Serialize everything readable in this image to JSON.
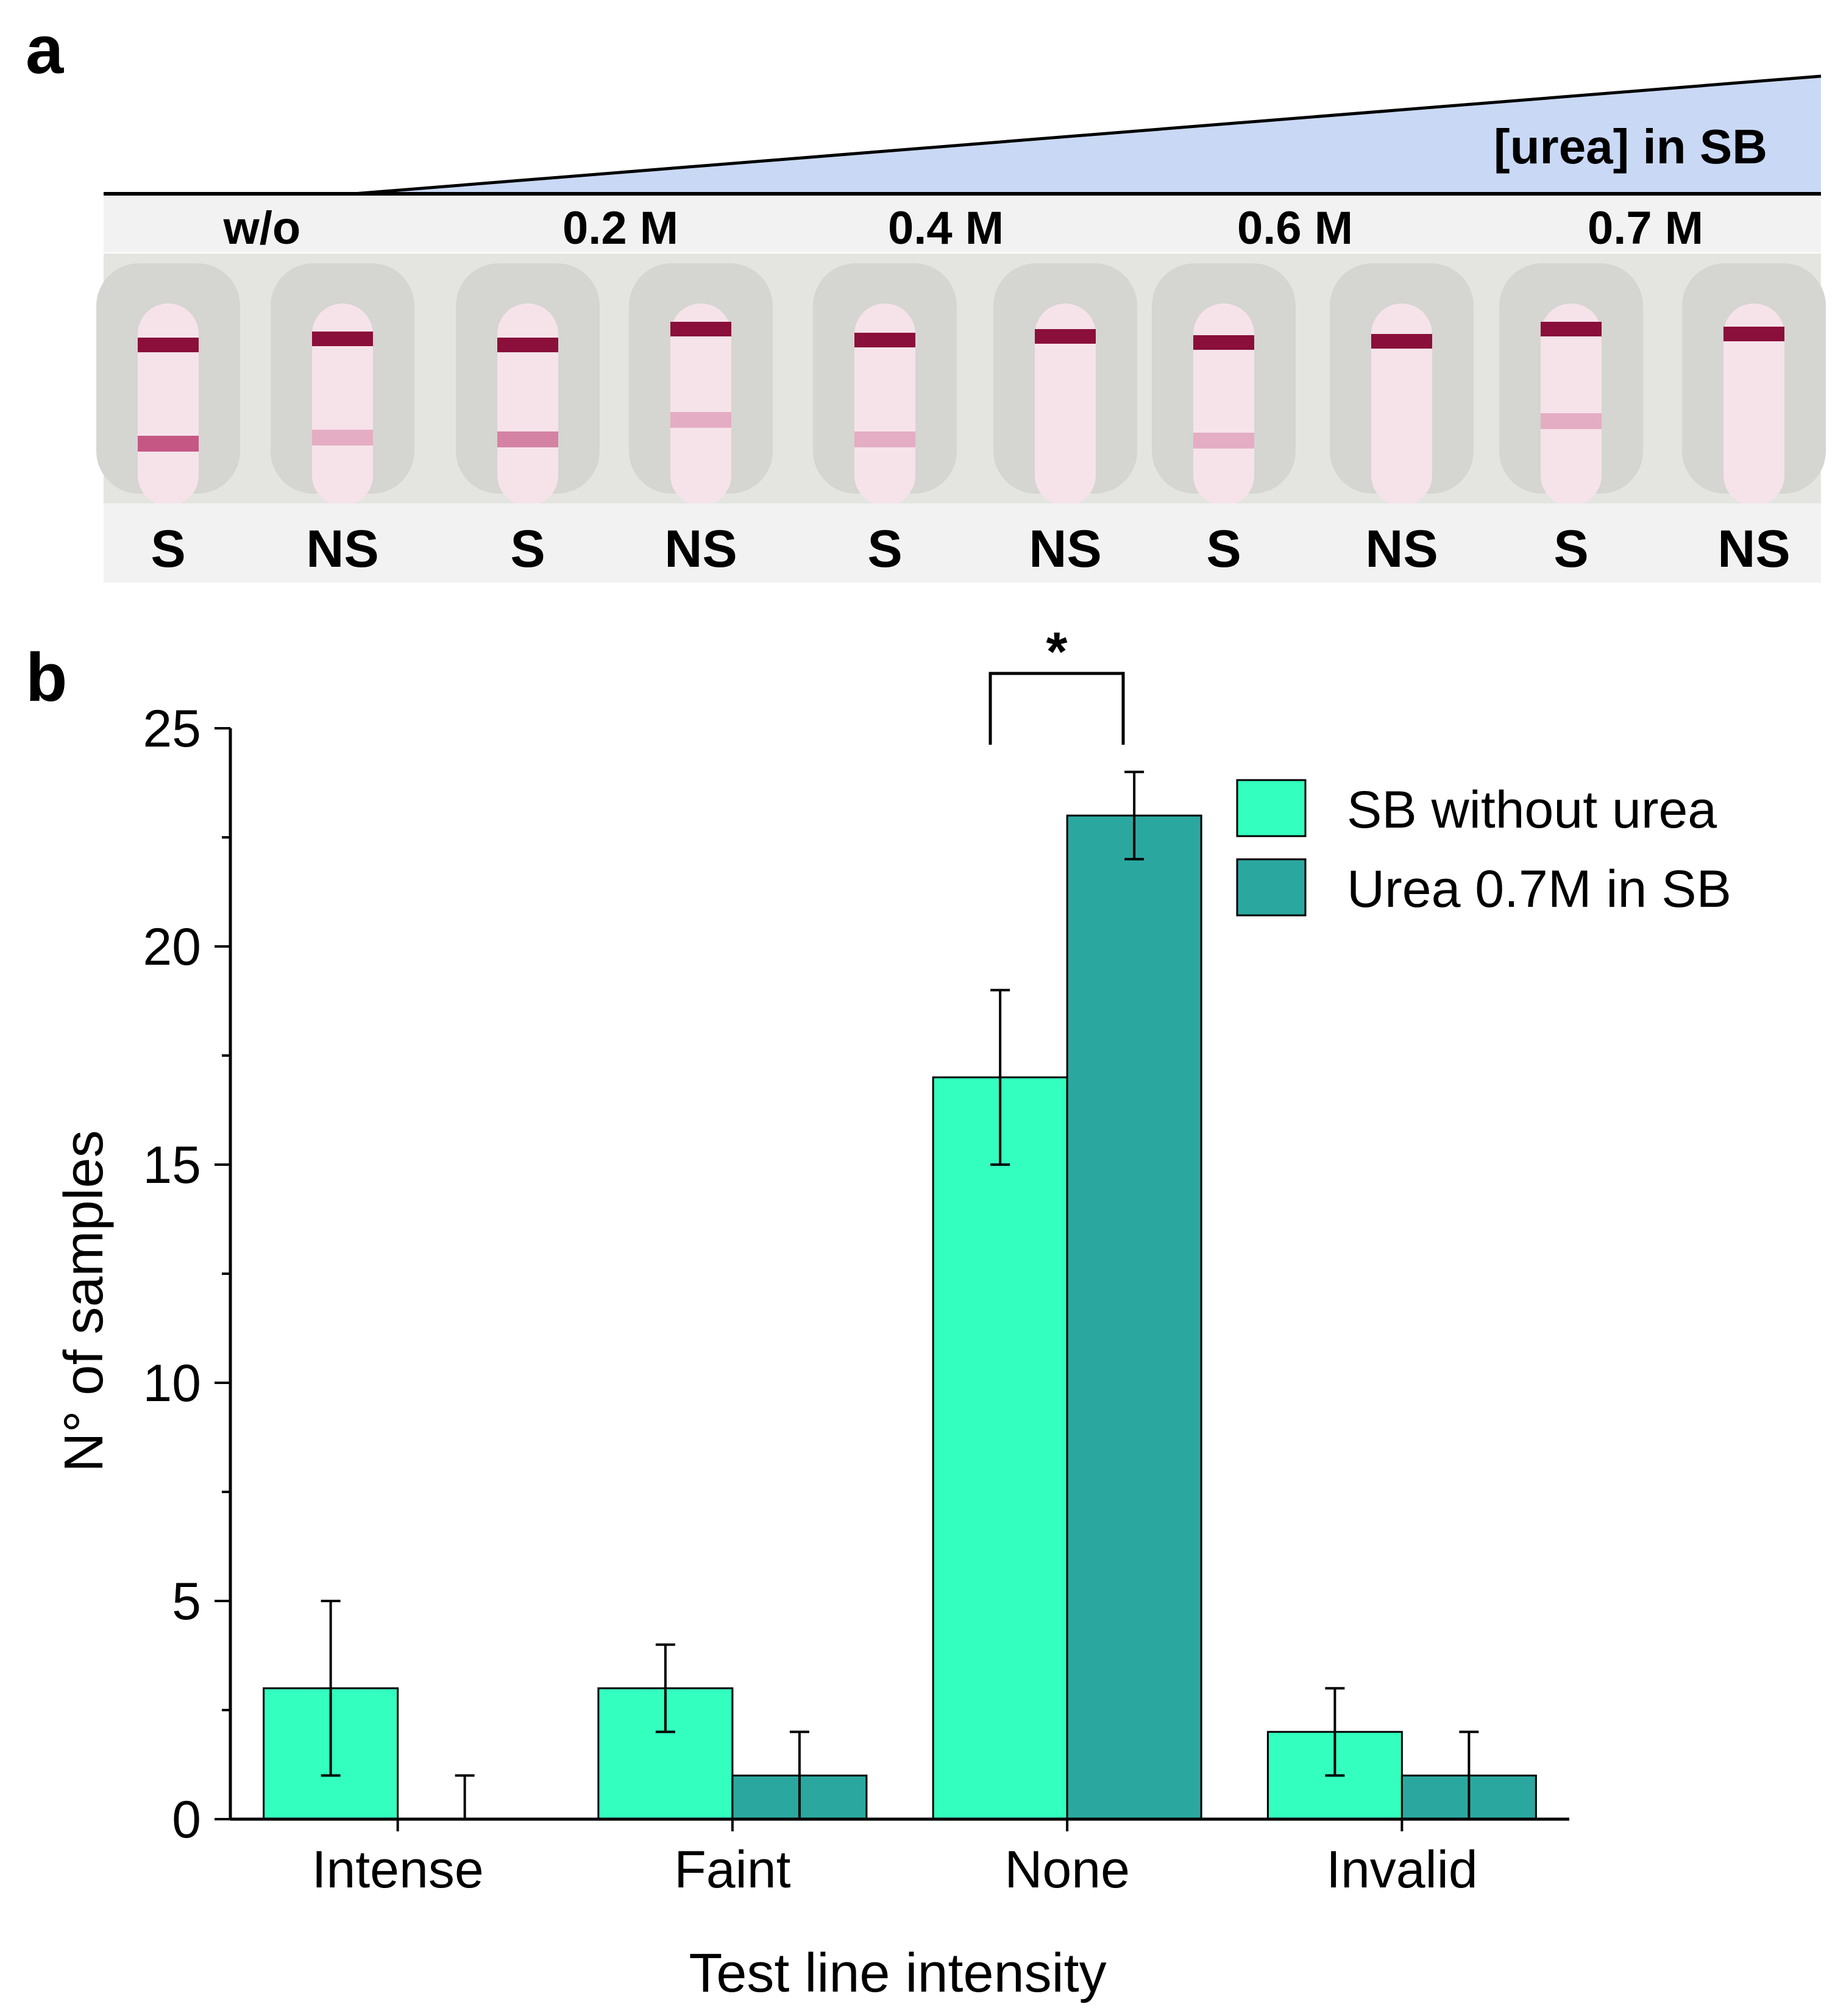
{
  "panel_a": {
    "label": "a",
    "gradient_label": "[urea] in SB",
    "concentrations": [
      "w/o",
      "0.2 M",
      "0.4 M",
      "0.6 M",
      "0.7 M"
    ],
    "strips": [
      {
        "label": "S",
        "test_line": "strong"
      },
      {
        "label": "NS",
        "test_line": "faint"
      },
      {
        "label": "S",
        "test_line": "medium"
      },
      {
        "label": "NS",
        "test_line": "faint"
      },
      {
        "label": "S",
        "test_line": "faint"
      },
      {
        "label": "NS",
        "test_line": "none"
      },
      {
        "label": "S",
        "test_line": "faint"
      },
      {
        "label": "NS",
        "test_line": "none"
      },
      {
        "label": "S",
        "test_line": "faint"
      },
      {
        "label": "NS",
        "test_line": "none"
      }
    ],
    "colors": {
      "gradient": "#c9d9f5",
      "control_line": "#8a0f3a",
      "strip": "#f6e3ea",
      "cassette": "#e7e7e4"
    }
  },
  "panel_b": {
    "label": "b",
    "significance_mark": "*"
  },
  "chart_data": {
    "type": "bar",
    "categories": [
      "Intense",
      "Faint",
      "None",
      "Invalid"
    ],
    "series": [
      {
        "name": "SB without urea",
        "color": "#33ffbf",
        "values": [
          3,
          3,
          17,
          2
        ],
        "errors": [
          2,
          1,
          2,
          1
        ]
      },
      {
        "name": "Urea 0.7M in SB",
        "color": "#2aa8a0",
        "values": [
          0,
          1,
          23,
          1
        ],
        "errors": [
          1,
          1,
          1,
          1
        ]
      }
    ],
    "xlabel": "Test line intensity",
    "ylabel": "N° of samples",
    "ylim": [
      0,
      25
    ],
    "yticks": [
      0,
      5,
      10,
      15,
      20,
      25
    ],
    "legend": "top-right",
    "grid": false
  }
}
